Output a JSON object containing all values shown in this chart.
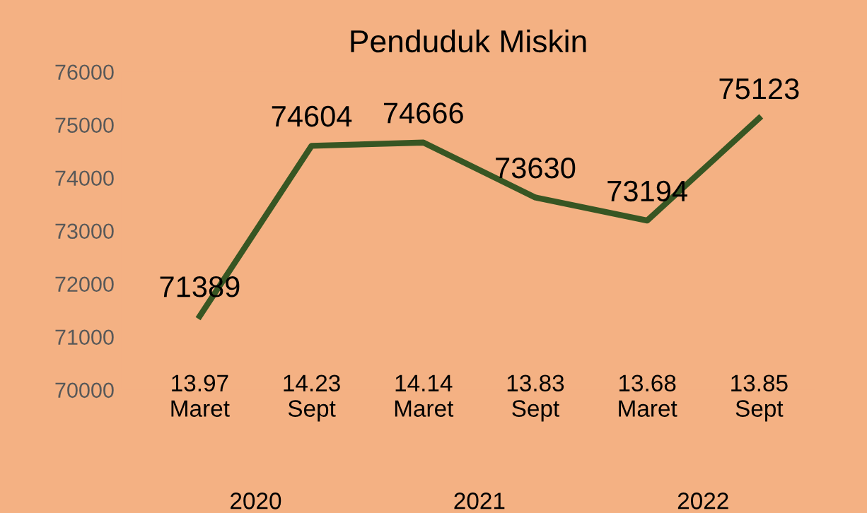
{
  "chart_data": {
    "type": "line",
    "title": "Penduduk Miskin",
    "categories": [
      "13.97\nMaret",
      "14.23\nSept",
      "14.14\nMaret",
      "13.83\nSept",
      "13.68\nMaret",
      "13.85\nSept"
    ],
    "series": [
      {
        "color": "#375623",
        "values": [
          71389,
          74604,
          74666,
          73630,
          73194,
          75123
        ]
      }
    ],
    "ylim": [
      70000,
      76000
    ],
    "yticks": [
      70000,
      71000,
      72000,
      73000,
      74000,
      75000,
      76000
    ],
    "data_labels": true,
    "grid": false,
    "legend": false,
    "marker": "none",
    "line_style": "solid",
    "annotations": [
      "2020",
      "2021",
      "2022"
    ]
  }
}
